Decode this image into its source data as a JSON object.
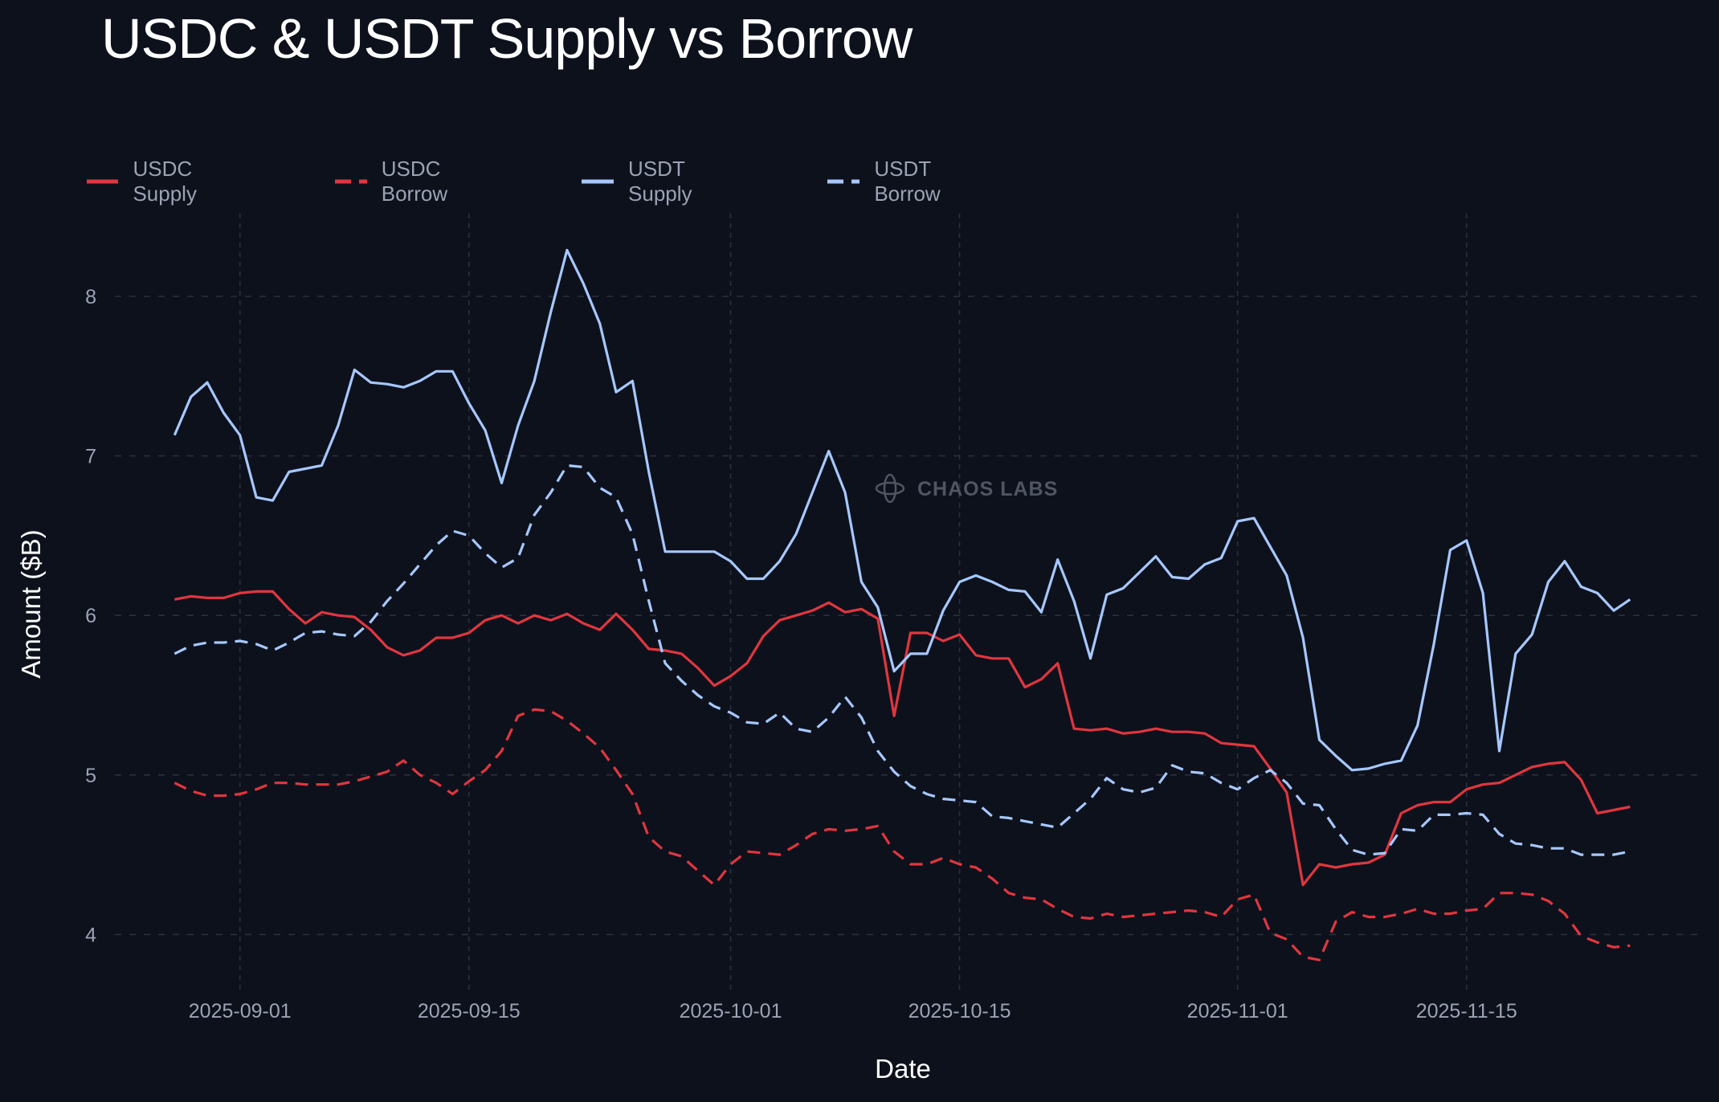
{
  "chart_data": {
    "type": "line",
    "title": "USDC & USDT Supply vs Borrow",
    "xlabel": "Date",
    "ylabel": "Amount ($B)",
    "x_start": "2025-08-28",
    "x_step_days": 1,
    "ylim": [
      3.65,
      8.5
    ],
    "yticks": [
      4,
      5,
      6,
      7,
      8
    ],
    "xticks": [
      {
        "label": "2025-09-01",
        "index": 4
      },
      {
        "label": "2025-09-15",
        "index": 18
      },
      {
        "label": "2025-10-01",
        "index": 34
      },
      {
        "label": "2025-10-15",
        "index": 48
      },
      {
        "label": "2025-11-01",
        "index": 65
      },
      {
        "label": "2025-11-15",
        "index": 79
      }
    ],
    "grid": true,
    "legend_position": "top-left",
    "watermark": "CHAOS LABS",
    "series": [
      {
        "name": "USDC Supply",
        "color": "#e0363f",
        "style": "solid",
        "values": [
          6.1,
          6.12,
          6.11,
          6.11,
          6.14,
          6.15,
          6.15,
          6.04,
          5.95,
          6.02,
          6.0,
          5.99,
          5.91,
          5.8,
          5.75,
          5.78,
          5.86,
          5.86,
          5.89,
          5.97,
          6.0,
          5.95,
          6.0,
          5.97,
          6.01,
          5.95,
          5.91,
          6.01,
          5.91,
          5.79,
          5.78,
          5.76,
          5.67,
          5.56,
          5.62,
          5.7,
          5.87,
          5.97,
          6.0,
          6.03,
          6.08,
          6.02,
          6.04,
          5.98,
          5.37,
          5.89,
          5.89,
          5.84,
          5.88,
          5.75,
          5.73,
          5.73,
          5.55,
          5.6,
          5.7,
          5.29,
          5.28,
          5.29,
          5.26,
          5.27,
          5.29,
          5.27,
          5.27,
          5.26,
          5.2,
          5.19,
          5.18,
          5.04,
          4.89,
          4.31,
          4.44,
          4.42,
          4.44,
          4.45,
          4.5,
          4.76,
          4.81,
          4.83,
          4.83,
          4.91,
          4.94,
          4.95,
          5.0,
          5.05,
          5.07,
          5.08,
          4.97,
          4.76,
          4.78,
          4.8
        ]
      },
      {
        "name": "USDC Borrow",
        "color": "#e0363f",
        "style": "dashed",
        "values": [
          4.95,
          4.9,
          4.87,
          4.87,
          4.88,
          4.91,
          4.95,
          4.95,
          4.94,
          4.94,
          4.94,
          4.96,
          4.99,
          5.02,
          5.09,
          5.0,
          4.95,
          4.88,
          4.96,
          5.03,
          5.15,
          5.37,
          5.41,
          5.4,
          5.34,
          5.26,
          5.17,
          5.03,
          4.88,
          4.61,
          4.52,
          4.49,
          4.4,
          4.31,
          4.44,
          4.52,
          4.51,
          4.5,
          4.56,
          4.63,
          4.66,
          4.65,
          4.66,
          4.68,
          4.52,
          4.44,
          4.44,
          4.48,
          4.44,
          4.42,
          4.35,
          4.26,
          4.23,
          4.22,
          4.16,
          4.11,
          4.1,
          4.13,
          4.11,
          4.12,
          4.13,
          4.14,
          4.15,
          4.14,
          4.11,
          4.22,
          4.25,
          4.01,
          3.97,
          3.86,
          3.84,
          4.08,
          4.14,
          4.11,
          4.11,
          4.13,
          4.16,
          4.13,
          4.13,
          4.15,
          4.16,
          4.26,
          4.26,
          4.25,
          4.21,
          4.13,
          3.99,
          3.95,
          3.92,
          3.93
        ]
      },
      {
        "name": "USDT Supply",
        "color": "#a6c8ff",
        "style": "solid",
        "values": [
          7.13,
          7.37,
          7.46,
          7.27,
          7.13,
          6.74,
          6.72,
          6.9,
          6.92,
          6.94,
          7.19,
          7.54,
          7.46,
          7.45,
          7.43,
          7.47,
          7.53,
          7.53,
          7.33,
          7.16,
          6.83,
          7.19,
          7.47,
          7.9,
          8.29,
          8.08,
          7.83,
          7.4,
          7.47,
          6.9,
          6.4,
          6.4,
          6.4,
          6.4,
          6.34,
          6.23,
          6.23,
          6.34,
          6.51,
          6.77,
          7.03,
          6.77,
          6.21,
          6.05,
          5.65,
          5.76,
          5.76,
          6.03,
          6.21,
          6.25,
          6.21,
          6.16,
          6.15,
          6.02,
          6.35,
          6.09,
          5.73,
          6.13,
          6.17,
          6.27,
          6.37,
          6.24,
          6.23,
          6.32,
          6.36,
          6.59,
          6.61,
          6.43,
          6.25,
          5.86,
          5.22,
          5.12,
          5.03,
          5.04,
          5.07,
          5.09,
          5.31,
          5.82,
          6.41,
          6.47,
          6.14,
          5.15,
          5.76,
          5.88,
          6.21,
          6.34,
          6.18,
          6.14,
          6.03,
          6.1
        ]
      },
      {
        "name": "USDT Borrow",
        "color": "#a6c8ff",
        "style": "dashed",
        "values": [
          5.76,
          5.81,
          5.83,
          5.83,
          5.84,
          5.82,
          5.78,
          5.83,
          5.89,
          5.9,
          5.88,
          5.87,
          5.96,
          6.09,
          6.2,
          6.32,
          6.44,
          6.53,
          6.5,
          6.39,
          6.3,
          6.36,
          6.63,
          6.77,
          6.94,
          6.93,
          6.8,
          6.74,
          6.51,
          6.09,
          5.7,
          5.59,
          5.5,
          5.43,
          5.39,
          5.33,
          5.32,
          5.39,
          5.29,
          5.27,
          5.36,
          5.49,
          5.36,
          5.15,
          5.02,
          4.93,
          4.88,
          4.85,
          4.84,
          4.83,
          4.74,
          4.73,
          4.71,
          4.69,
          4.67,
          4.76,
          4.85,
          4.98,
          4.91,
          4.89,
          4.92,
          5.06,
          5.02,
          5.01,
          4.95,
          4.91,
          4.98,
          5.03,
          4.95,
          4.82,
          4.81,
          4.66,
          4.53,
          4.5,
          4.51,
          4.66,
          4.65,
          4.75,
          4.75,
          4.76,
          4.75,
          4.63,
          4.57,
          4.56,
          4.54,
          4.54,
          4.5,
          4.5,
          4.5,
          4.52
        ]
      }
    ]
  }
}
